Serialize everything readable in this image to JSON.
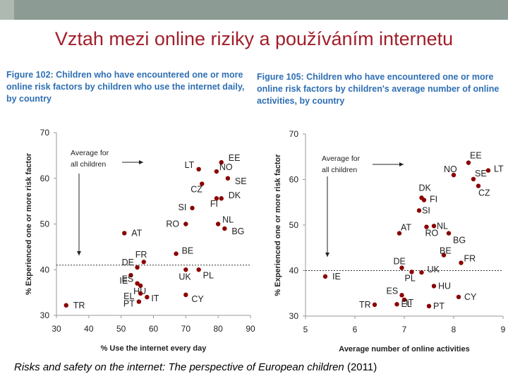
{
  "slide": {
    "title": "Vztah mezi online riziky a používáním internetu",
    "caption_italic": "Risks and safety on the internet: The perspective of European children",
    "caption_year": " (2011)"
  },
  "colors": {
    "dot": "#8b0000",
    "title": "#a11f2a",
    "figure_title": "#2f6fb3"
  },
  "chart_data": [
    {
      "type": "scatter",
      "title": "Figure 102: Children who have encountered one or more online risk factors by children who use the internet daily, by country",
      "xlabel": "% Use the internet every day",
      "ylabel": "% Experienced one or more risk factor",
      "xlim": [
        30,
        90
      ],
      "ylim": [
        30,
        70
      ],
      "xticks": [
        30,
        40,
        50,
        60,
        70,
        80,
        90
      ],
      "yticks": [
        30,
        40,
        50,
        60,
        70
      ],
      "reference_line": {
        "y": 41,
        "style": "dashed"
      },
      "annotation": "Average for all children",
      "points": [
        {
          "label": "EE",
          "x": 81,
          "y": 63.5
        },
        {
          "label": "LT",
          "x": 74,
          "y": 62
        },
        {
          "label": "NO",
          "x": 79.5,
          "y": 61.5
        },
        {
          "label": "SE",
          "x": 83,
          "y": 60
        },
        {
          "label": "CZ",
          "x": 75,
          "y": 58.8
        },
        {
          "label": "DK",
          "x": 81,
          "y": 55.6
        },
        {
          "label": "SI",
          "x": 72,
          "y": 53.5
        },
        {
          "label": "FI",
          "x": 79.5,
          "y": 55.6
        },
        {
          "label": "RO",
          "x": 70,
          "y": 50
        },
        {
          "label": "NL",
          "x": 80,
          "y": 50
        },
        {
          "label": "BG",
          "x": 82,
          "y": 49
        },
        {
          "label": "AT",
          "x": 51,
          "y": 48
        },
        {
          "label": "FR",
          "x": 57,
          "y": 41.7
        },
        {
          "label": "BE",
          "x": 67,
          "y": 43.5
        },
        {
          "label": "DE",
          "x": 55,
          "y": 40.5
        },
        {
          "label": "IE",
          "x": 53,
          "y": 38.8
        },
        {
          "label": "HU",
          "x": 56,
          "y": 36.5
        },
        {
          "label": "UK",
          "x": 70,
          "y": 40
        },
        {
          "label": "PL",
          "x": 74,
          "y": 40
        },
        {
          "label": "ES",
          "x": 55,
          "y": 37
        },
        {
          "label": "EL",
          "x": 56,
          "y": 34.8
        },
        {
          "label": "IT",
          "x": 58,
          "y": 34
        },
        {
          "label": "PT",
          "x": 55.5,
          "y": 33
        },
        {
          "label": "CY",
          "x": 70,
          "y": 34.5
        },
        {
          "label": "TR",
          "x": 33,
          "y": 32.2
        }
      ]
    },
    {
      "type": "scatter",
      "title": "Figure 105: Children who have encountered one or more online risk factors by children's average number of online activities, by country",
      "xlabel": "Average number of online activities",
      "ylabel": "% Experienced one or more risk factor",
      "xlim": [
        5,
        9
      ],
      "ylim": [
        30,
        70
      ],
      "xticks": [
        5,
        6,
        7,
        8,
        9
      ],
      "yticks": [
        30,
        40,
        50,
        60,
        70
      ],
      "reference_line": {
        "y": 40,
        "style": "dashed"
      },
      "annotation": "Average for all children",
      "points": [
        {
          "label": "EE",
          "x": 8.3,
          "y": 63.7
        },
        {
          "label": "NO",
          "x": 8.0,
          "y": 61.0
        },
        {
          "label": "LT",
          "x": 8.7,
          "y": 62.0
        },
        {
          "label": "SE",
          "x": 8.4,
          "y": 60.1
        },
        {
          "label": "CZ",
          "x": 8.5,
          "y": 58.6
        },
        {
          "label": "DK",
          "x": 7.35,
          "y": 56.0
        },
        {
          "label": "FI",
          "x": 7.4,
          "y": 55.5
        },
        {
          "label": "SI",
          "x": 7.3,
          "y": 53.2
        },
        {
          "label": "NL",
          "x": 7.6,
          "y": 49.8
        },
        {
          "label": "AT",
          "x": 6.9,
          "y": 48.2
        },
        {
          "label": "RO",
          "x": 7.45,
          "y": 49.6
        },
        {
          "label": "BG",
          "x": 7.9,
          "y": 48.2
        },
        {
          "label": "BE",
          "x": 7.8,
          "y": 43.4
        },
        {
          "label": "FR",
          "x": 8.15,
          "y": 41.7
        },
        {
          "label": "DE",
          "x": 6.95,
          "y": 40.6
        },
        {
          "label": "IE",
          "x": 5.4,
          "y": 38.7
        },
        {
          "label": "UK",
          "x": 7.35,
          "y": 39.6
        },
        {
          "label": "PL",
          "x": 7.15,
          "y": 39.7
        },
        {
          "label": "HU",
          "x": 7.6,
          "y": 36.6
        },
        {
          "label": "ES",
          "x": 6.95,
          "y": 34.6
        },
        {
          "label": "IT",
          "x": 7.0,
          "y": 33.6
        },
        {
          "label": "TR",
          "x": 6.4,
          "y": 32.5
        },
        {
          "label": "EL",
          "x": 6.85,
          "y": 32.6
        },
        {
          "label": "PT",
          "x": 7.5,
          "y": 32.2
        },
        {
          "label": "CY",
          "x": 8.1,
          "y": 34.2
        }
      ]
    }
  ]
}
